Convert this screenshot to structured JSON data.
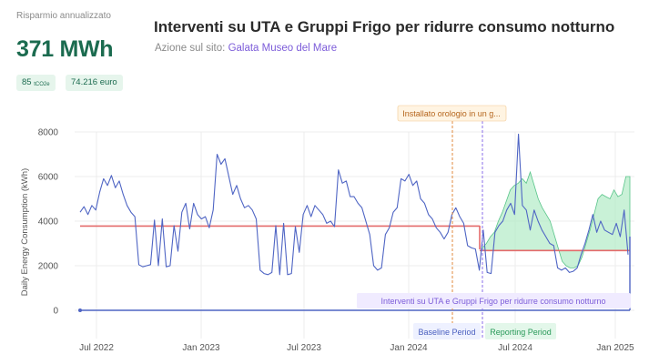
{
  "summary": {
    "label": "Risparmio annualizzato",
    "value": "371 MWh",
    "co2_value": "85",
    "co2_unit": "tCO2e",
    "euro": "74.216 euro"
  },
  "header": {
    "title": "Interventi su UTA e Gruppi Frigo per ridurre consumo notturno",
    "site_prefix": "Azione sul sito:",
    "site_name": "Galata Museo del Mare"
  },
  "chart_data": {
    "type": "line",
    "ylabel": "Daily Energy Consumption (kWh)",
    "ylim": [
      0,
      8000
    ],
    "y_ticks": [
      0,
      2000,
      4000,
      6000,
      8000
    ],
    "x_ticks": [
      "Jul 2022",
      "Jan 2023",
      "Jul 2023",
      "Jan 2024",
      "Jul 2024",
      "Jan 2025"
    ],
    "baseline_level": 3780,
    "reporting_level": 2680,
    "annotations": {
      "event_marker": "Installato orologio in un g...",
      "action_label": "Interventi su UTA e Gruppi Frigo per ridurre consumo notturno",
      "baseline_period": "Baseline Period",
      "reporting_period": "Reporting Period"
    },
    "series": [
      {
        "values": [
          4400,
          4650,
          4300,
          4700,
          4500,
          5300,
          5900,
          5600,
          6050,
          5500,
          5800,
          5200,
          4700,
          4400,
          4200,
          2050,
          1950,
          2000,
          2050,
          4050,
          2000,
          4100,
          1950,
          2000,
          3800,
          2650,
          4400,
          4800,
          3650,
          4800,
          4300,
          4100,
          4200,
          3700,
          4500,
          7000,
          6550,
          6800,
          6000,
          5200,
          5600,
          5000,
          4600,
          4700,
          4500,
          4100,
          1800,
          1650,
          1600,
          1700,
          3800,
          1600,
          3900,
          1600,
          1650,
          3750,
          2600,
          4300,
          4700,
          4200,
          4700,
          4500,
          4300,
          3900,
          4000,
          3750,
          6300,
          5700,
          5800,
          5100,
          5100,
          4800,
          4600,
          4000,
          3400,
          2000,
          1800,
          1900,
          3400,
          3700,
          4400,
          4600,
          5900,
          5800,
          6100,
          5600,
          5800,
          5000,
          4800,
          4300,
          4100,
          3700,
          3500,
          3200,
          3500,
          4300,
          4600,
          4200,
          3900,
          2900,
          2800,
          2750,
          1800,
          3600,
          1700,
          1650,
          3500,
          3800,
          4000,
          4500,
          4800,
          4300,
          7900,
          4700,
          4500,
          3600,
          4500,
          4000,
          3600,
          3300,
          3000,
          2900,
          1900,
          1800,
          1900,
          1700,
          1750,
          1900,
          2500,
          3000,
          3600,
          4300,
          3500,
          4000,
          3600,
          3500,
          3400,
          3900,
          3300,
          4500,
          2500
        ]
      },
      {
        "name": "reporting-band-upper",
        "values": [
          2800,
          3000,
          3300,
          3500,
          4000,
          4400,
          4900,
          5400,
          5600,
          5700,
          5900,
          5700,
          6200,
          5600,
          5000,
          4600,
          4300,
          4000,
          3400,
          2800,
          2200,
          2000,
          1900,
          1900,
          2000,
          2400,
          3000,
          3600,
          4300,
          5000,
          5200,
          5100,
          5000,
          5400,
          5100,
          5200,
          6000,
          6000
        ]
      }
    ]
  }
}
